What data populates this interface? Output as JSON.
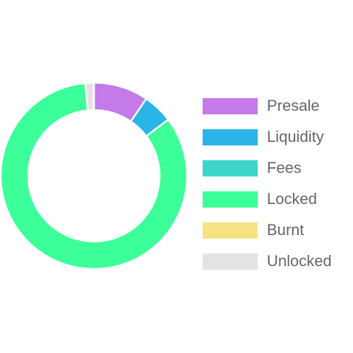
{
  "chart_data": {
    "type": "pie",
    "variant": "doughnut",
    "title": "",
    "categories": [
      "Presale",
      "Liquidity",
      "Fees",
      "Locked",
      "Burnt",
      "Unlocked"
    ],
    "values": [
      9.5,
      5.2,
      0,
      83.8,
      0,
      1.5
    ],
    "colors": [
      "#c47ae8",
      "#29b6e6",
      "#3dd5c9",
      "#3cff99",
      "#f7e383",
      "#e3e3e3"
    ],
    "legend_position": "right"
  }
}
